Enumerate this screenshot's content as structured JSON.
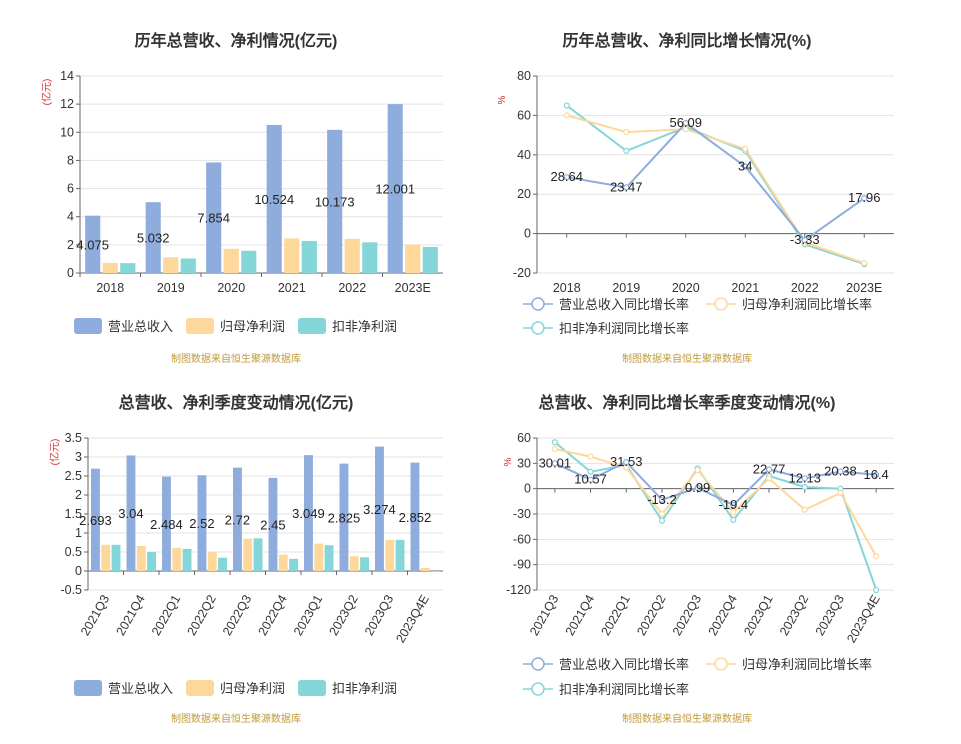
{
  "colors": {
    "revenue": "#8eacdc",
    "net": "#fdd89a",
    "deducted": "#84d6d8",
    "grid": "#e3e3e3",
    "axis": "#666666"
  },
  "source_note": "制图数据来自恒生聚源数据库",
  "chart_data": [
    {
      "id": "c1",
      "type": "bar",
      "title": "历年总营收、净利情况(亿元)",
      "ylabel": "(亿元)",
      "categories": [
        "2018",
        "2019",
        "2020",
        "2021",
        "2022",
        "2023E"
      ],
      "ylim": [
        0,
        14
      ],
      "yticks": [
        0,
        2,
        4,
        6,
        8,
        10,
        12,
        14
      ],
      "series": [
        {
          "name": "营业总收入",
          "colorKey": "revenue",
          "values": [
            4.075,
            5.032,
            7.854,
            10.524,
            10.173,
            12.001
          ],
          "labels": [
            "4.075",
            "5.032",
            "7.854",
            "10.524",
            "10.173",
            "12.001"
          ]
        },
        {
          "name": "归母净利润",
          "colorKey": "net",
          "values": [
            0.72,
            1.12,
            1.72,
            2.46,
            2.43,
            2.02
          ]
        },
        {
          "name": "扣非净利润",
          "colorKey": "deducted",
          "values": [
            0.7,
            1.03,
            1.58,
            2.28,
            2.18,
            1.85
          ]
        }
      ]
    },
    {
      "id": "c2",
      "type": "line",
      "title": "历年总营收、净利同比增长情况(%)",
      "ylabel": "%",
      "categories": [
        "2018",
        "2019",
        "2020",
        "2021",
        "2022",
        "2023E"
      ],
      "ylim": [
        -20,
        80
      ],
      "yticks": [
        -20,
        0,
        20,
        40,
        60,
        80
      ],
      "series": [
        {
          "name": "营业总收入同比增长率",
          "colorKey": "revenue",
          "values": [
            28.64,
            23.47,
            56.09,
            34,
            -3.33,
            17.96
          ],
          "labels": [
            "28.64",
            "23.47",
            "56.09",
            "34",
            "-3.33",
            "17.96"
          ]
        },
        {
          "name": "归母净利润同比增长率",
          "colorKey": "net",
          "values": [
            60,
            51.5,
            53,
            43,
            -4.5,
            -15
          ]
        },
        {
          "name": "扣非净利润同比增长率",
          "colorKey": "deducted",
          "values": [
            65,
            42,
            54,
            42,
            -5.5,
            -15.5
          ]
        }
      ]
    },
    {
      "id": "c3",
      "type": "bar",
      "title": "总营收、净利季度变动情况(亿元)",
      "ylabel": "(亿元)",
      "categories": [
        "2021Q3",
        "2021Q4",
        "2022Q1",
        "2022Q2",
        "2022Q3",
        "2022Q4",
        "2023Q1",
        "2023Q2",
        "2023Q3",
        "2023Q4E"
      ],
      "ylim": [
        -0.5,
        3.5
      ],
      "yticks": [
        -0.5,
        0,
        0.5,
        1,
        1.5,
        2,
        2.5,
        3,
        3.5
      ],
      "series": [
        {
          "name": "营业总收入",
          "colorKey": "revenue",
          "values": [
            2.693,
            3.04,
            2.484,
            2.52,
            2.72,
            2.45,
            3.049,
            2.825,
            3.274,
            2.852
          ],
          "labels": [
            "2.693",
            "3.04",
            "2.484",
            "2.52",
            "2.72",
            "2.45",
            "3.049",
            "2.825",
            "3.274",
            "2.852"
          ]
        },
        {
          "name": "归母净利润",
          "colorKey": "net",
          "values": [
            0.69,
            0.66,
            0.61,
            0.49,
            0.85,
            0.43,
            0.72,
            0.39,
            0.82,
            0.08
          ]
        },
        {
          "name": "扣非净利润",
          "colorKey": "deducted",
          "values": [
            0.69,
            0.5,
            0.58,
            0.35,
            0.86,
            0.32,
            0.68,
            0.36,
            0.82,
            -0.02
          ]
        }
      ]
    },
    {
      "id": "c4",
      "type": "line",
      "title": "总营收、净利同比增长率季度变动情况(%)",
      "ylabel": "%",
      "categories": [
        "2021Q3",
        "2021Q4",
        "2022Q1",
        "2022Q2",
        "2022Q3",
        "2022Q4",
        "2023Q1",
        "2023Q2",
        "2023Q3",
        "2023Q4E"
      ],
      "ylim": [
        -120,
        60
      ],
      "yticks": [
        -120,
        -90,
        -60,
        -30,
        0,
        30,
        60
      ],
      "series": [
        {
          "name": "营业总收入同比增长率",
          "colorKey": "revenue",
          "values": [
            30.01,
            10.57,
            31.53,
            -13.2,
            0.99,
            -19.4,
            22.77,
            12.13,
            20.38,
            16.4
          ],
          "labels": [
            "30.01",
            "10.57",
            "31.53",
            "-13.2",
            "0.99",
            "-19.4",
            "22.77",
            "12.13",
            "20.38",
            "16.4"
          ]
        },
        {
          "name": "归母净利润同比增长率",
          "colorKey": "net",
          "values": [
            47,
            38,
            25,
            -30,
            22,
            -28,
            12,
            -25,
            -5,
            -80
          ]
        },
        {
          "name": "扣非净利润同比增长率",
          "colorKey": "deducted",
          "values": [
            55,
            20,
            28,
            -38,
            24,
            -37,
            15,
            2,
            0,
            -120
          ]
        }
      ]
    }
  ]
}
